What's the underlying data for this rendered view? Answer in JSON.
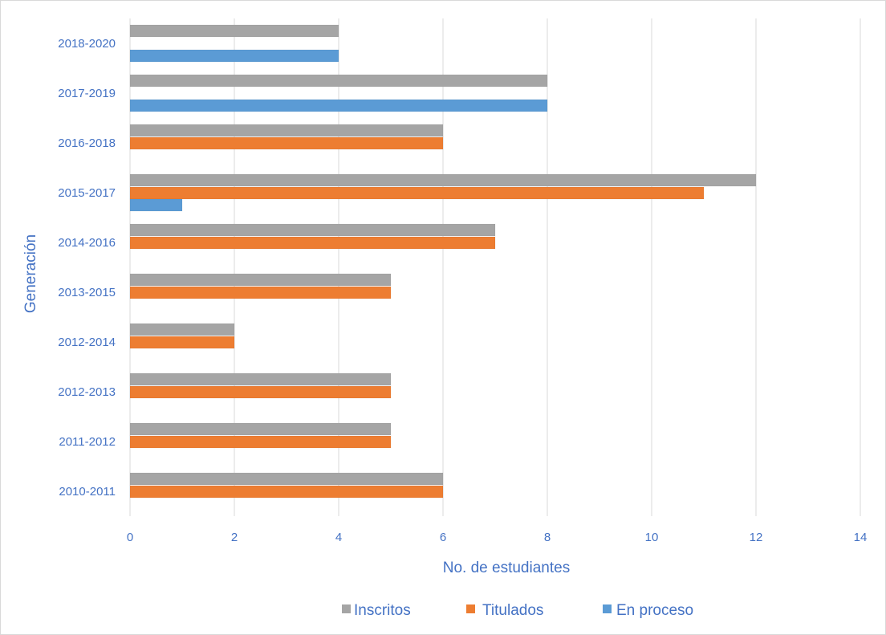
{
  "chart_data": {
    "type": "bar",
    "orientation": "horizontal",
    "categories": [
      "2018-2020",
      "2017-2019",
      "2016-2018",
      "2015-2017",
      "2014-2016",
      "2013-2015",
      "2012-2014",
      "2012-2013",
      "2011-2012",
      "2010-2011"
    ],
    "series": [
      {
        "name": "Inscritos",
        "color": "#a5a5a5",
        "values": [
          4,
          8,
          6,
          12,
          7,
          5,
          2,
          5,
          5,
          6
        ]
      },
      {
        "name": "Titulados",
        "color": "#ed7d31",
        "values": [
          null,
          null,
          6,
          11,
          7,
          5,
          2,
          5,
          5,
          6
        ]
      },
      {
        "name": "En proceso",
        "color": "#5b9bd5",
        "values": [
          4,
          8,
          null,
          1,
          null,
          null,
          null,
          null,
          null,
          null
        ]
      }
    ],
    "xlabel": "No. de estudiantes",
    "ylabel": "Generación",
    "xlim": [
      0,
      14
    ],
    "xticks": [
      0,
      2,
      4,
      6,
      8,
      10,
      12,
      14
    ],
    "grid": "vertical",
    "legend": "bottom",
    "axis_text_color": "#4472c4",
    "grid_color": "#d9d9d9"
  }
}
